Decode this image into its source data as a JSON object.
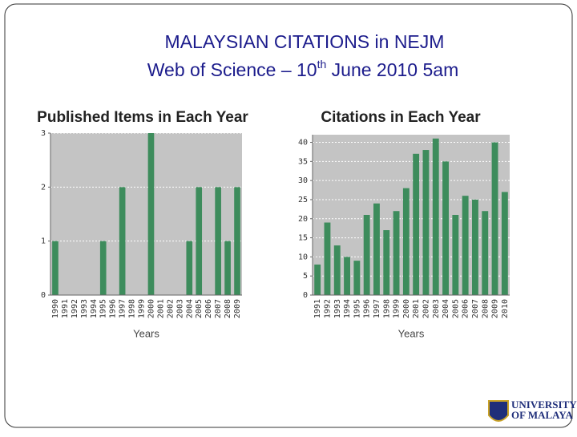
{
  "slide": {
    "title": "MALAYSIAN CITATIONS in NEJM",
    "subtitle": [
      "Web of Science – 10",
      "th",
      " June 2010 5am"
    ],
    "logo": [
      "UNIVERSITY",
      "OF MALAYA"
    ]
  },
  "chart_data": [
    {
      "type": "bar",
      "title": "Published Items in Each Year",
      "xlabel": "Years",
      "color": "#3d8c5c",
      "grid": true,
      "categories": [
        "1990",
        "1991",
        "1992",
        "1993",
        "1994",
        "1995",
        "1996",
        "1997",
        "1998",
        "1999",
        "2000",
        "2001",
        "2002",
        "2003",
        "2004",
        "2005",
        "2006",
        "2007",
        "2008",
        "2009"
      ],
      "values": [
        1,
        0,
        0,
        0,
        0,
        1,
        0,
        2,
        0,
        0,
        3,
        0,
        0,
        0,
        1,
        2,
        0,
        2,
        1,
        2
      ],
      "ylim": [
        0,
        3
      ],
      "yticks": [
        0,
        1,
        2,
        3
      ]
    },
    {
      "type": "bar",
      "title": "Citations in Each Year",
      "xlabel": "Years",
      "color": "#3d8c5c",
      "grid": true,
      "categories": [
        "1991",
        "1992",
        "1993",
        "1994",
        "1995",
        "1996",
        "1997",
        "1998",
        "1999",
        "2000",
        "2001",
        "2002",
        "2003",
        "2004",
        "2005",
        "2006",
        "2007",
        "2008",
        "2009",
        "2010"
      ],
      "values": [
        8,
        19,
        13,
        10,
        9,
        21,
        24,
        17,
        22,
        28,
        37,
        38,
        41,
        35,
        21,
        26,
        25,
        22,
        40,
        27
      ],
      "ylim": [
        0,
        42
      ],
      "yticks": [
        0,
        5,
        10,
        15,
        20,
        25,
        30,
        35,
        40
      ]
    }
  ]
}
